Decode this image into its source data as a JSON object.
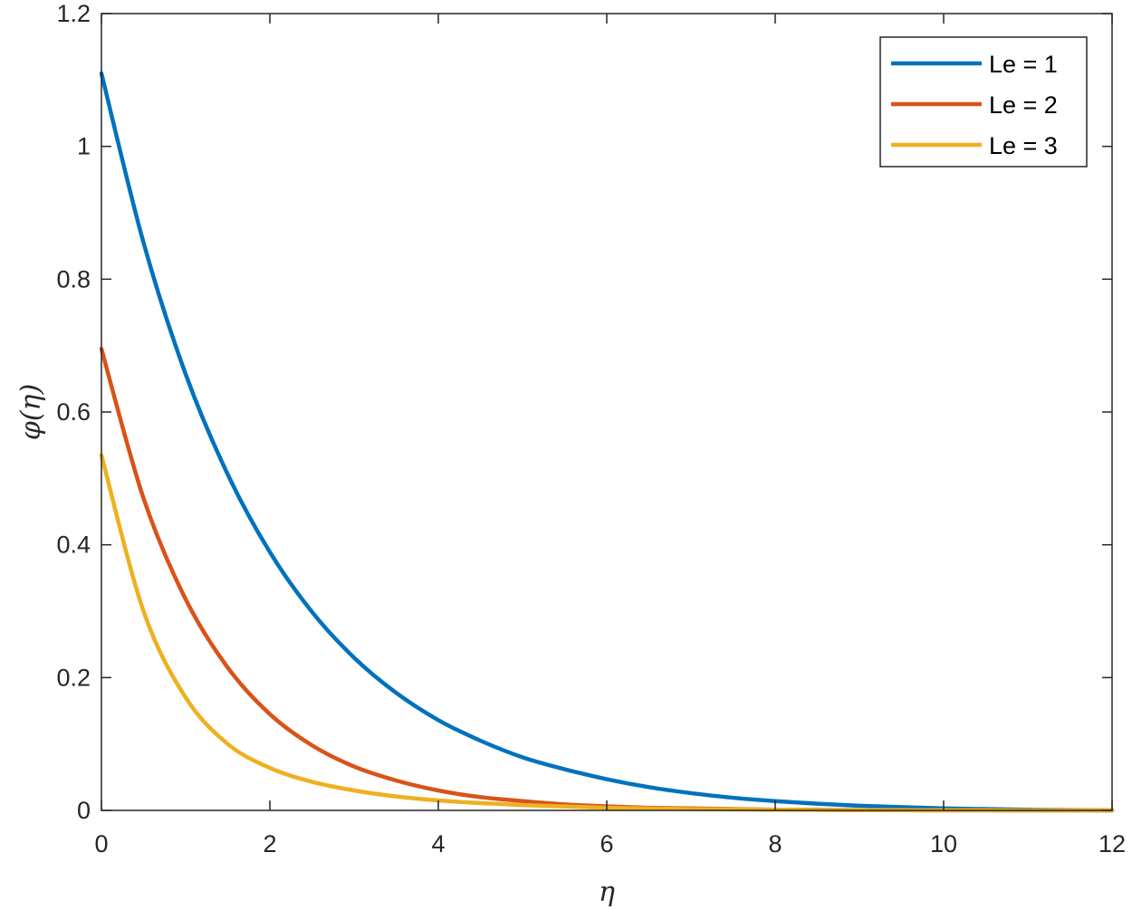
{
  "chart_data": {
    "type": "line",
    "title": "",
    "xlabel": "η",
    "ylabel": "φ(η)",
    "xlim": [
      0,
      12
    ],
    "ylim": [
      0,
      1.2
    ],
    "xticks": [
      0,
      2,
      4,
      6,
      8,
      10,
      12
    ],
    "xtick_labels": [
      "0",
      "2",
      "4",
      "6",
      "8",
      "10",
      "12"
    ],
    "yticks": [
      0,
      0.2,
      0.4,
      0.6,
      0.8,
      1,
      1.2
    ],
    "ytick_labels": [
      "0",
      "0.2",
      "0.4",
      "0.6",
      "0.8",
      "1",
      "1.2"
    ],
    "grid": false,
    "legend_position": "top-right",
    "x": [
      0,
      0.5,
      1,
      1.5,
      2,
      2.5,
      3,
      3.5,
      4,
      4.5,
      5,
      5.5,
      6,
      6.5,
      7,
      7.5,
      8,
      8.5,
      9,
      9.5,
      10,
      10.5,
      11,
      11.5,
      12
    ],
    "series": [
      {
        "name": "Le = 1",
        "color": "#0072BD",
        "values": [
          1.11,
          0.855,
          0.657,
          0.506,
          0.389,
          0.299,
          0.23,
          0.177,
          0.136,
          0.105,
          0.08,
          0.062,
          0.047,
          0.035,
          0.026,
          0.019,
          0.014,
          0.01,
          0.007,
          0.005,
          0.003,
          0.002,
          0.001,
          0.0005,
          0
        ]
      },
      {
        "name": "Le = 2",
        "color": "#D95319",
        "values": [
          0.695,
          0.47,
          0.318,
          0.215,
          0.145,
          0.098,
          0.066,
          0.045,
          0.03,
          0.02,
          0.014,
          0.009,
          0.006,
          0.004,
          0.003,
          0.002,
          0.001,
          0.001,
          0.0005,
          0.0003,
          0.0002,
          0.0001,
          0,
          0,
          0
        ]
      },
      {
        "name": "Le = 3",
        "color": "#EDB120",
        "values": [
          0.535,
          0.3,
          0.17,
          0.1,
          0.064,
          0.043,
          0.03,
          0.021,
          0.015,
          0.011,
          0.008,
          0.006,
          0.004,
          0.003,
          0.002,
          0.0015,
          0.001,
          0.0007,
          0.0005,
          0.0003,
          0.0002,
          0.0001,
          0,
          0,
          0
        ]
      }
    ]
  }
}
